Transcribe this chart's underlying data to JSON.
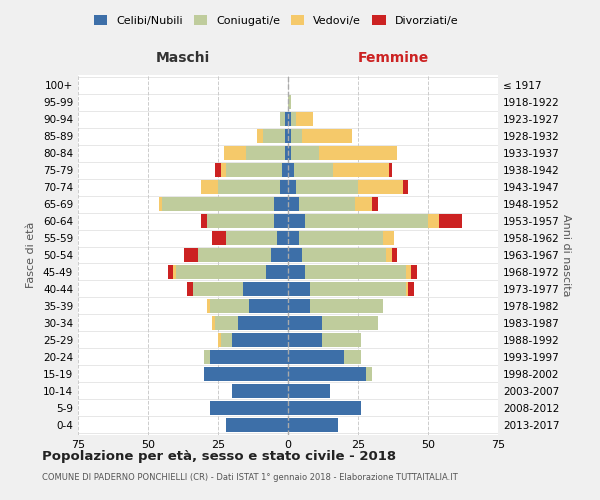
{
  "age_groups": [
    "0-4",
    "5-9",
    "10-14",
    "15-19",
    "20-24",
    "25-29",
    "30-34",
    "35-39",
    "40-44",
    "45-49",
    "50-54",
    "55-59",
    "60-64",
    "65-69",
    "70-74",
    "75-79",
    "80-84",
    "85-89",
    "90-94",
    "95-99",
    "100+"
  ],
  "birth_years": [
    "2013-2017",
    "2008-2012",
    "2003-2007",
    "1998-2002",
    "1993-1997",
    "1988-1992",
    "1983-1987",
    "1978-1982",
    "1973-1977",
    "1968-1972",
    "1963-1967",
    "1958-1962",
    "1953-1957",
    "1948-1952",
    "1943-1947",
    "1938-1942",
    "1933-1937",
    "1928-1932",
    "1923-1927",
    "1918-1922",
    "≤ 1917"
  ],
  "male": {
    "celibi": [
      22,
      28,
      20,
      30,
      28,
      20,
      18,
      14,
      16,
      8,
      6,
      4,
      5,
      5,
      3,
      2,
      1,
      1,
      1,
      0,
      0
    ],
    "coniugati": [
      0,
      0,
      0,
      0,
      2,
      4,
      8,
      14,
      18,
      32,
      26,
      18,
      24,
      40,
      22,
      20,
      14,
      8,
      2,
      0,
      0
    ],
    "vedovi": [
      0,
      0,
      0,
      0,
      0,
      1,
      1,
      1,
      0,
      1,
      0,
      0,
      0,
      1,
      6,
      2,
      8,
      2,
      0,
      0,
      0
    ],
    "divorziati": [
      0,
      0,
      0,
      0,
      0,
      0,
      0,
      0,
      2,
      2,
      5,
      5,
      2,
      0,
      0,
      2,
      0,
      0,
      0,
      0,
      0
    ]
  },
  "female": {
    "nubili": [
      18,
      26,
      15,
      28,
      20,
      12,
      12,
      8,
      8,
      6,
      5,
      4,
      6,
      4,
      3,
      2,
      1,
      1,
      1,
      0,
      0
    ],
    "coniugate": [
      0,
      0,
      0,
      2,
      6,
      14,
      20,
      26,
      34,
      36,
      30,
      30,
      44,
      20,
      22,
      14,
      10,
      4,
      2,
      1,
      0
    ],
    "vedove": [
      0,
      0,
      0,
      0,
      0,
      0,
      0,
      0,
      1,
      2,
      2,
      4,
      4,
      6,
      16,
      20,
      28,
      18,
      6,
      0,
      0
    ],
    "divorziate": [
      0,
      0,
      0,
      0,
      0,
      0,
      0,
      0,
      2,
      2,
      2,
      0,
      8,
      2,
      2,
      1,
      0,
      0,
      0,
      0,
      0
    ]
  },
  "color_celibi": "#3d6fa8",
  "color_coniugati": "#bfcc9c",
  "color_vedovi": "#f5c96a",
  "color_divorziati": "#cc2222",
  "xlim": 75,
  "title": "Popolazione per età, sesso e stato civile - 2018",
  "subtitle": "COMUNE DI PADERNO PONCHIELLI (CR) - Dati ISTAT 1° gennaio 2018 - Elaborazione TUTTAITALIA.IT",
  "ylabel_left": "Fasce di età",
  "ylabel_right": "Anni di nascita",
  "xlabel_left": "Maschi",
  "xlabel_right": "Femmine",
  "bg_color": "#f0f0f0",
  "plot_bg": "#ffffff"
}
